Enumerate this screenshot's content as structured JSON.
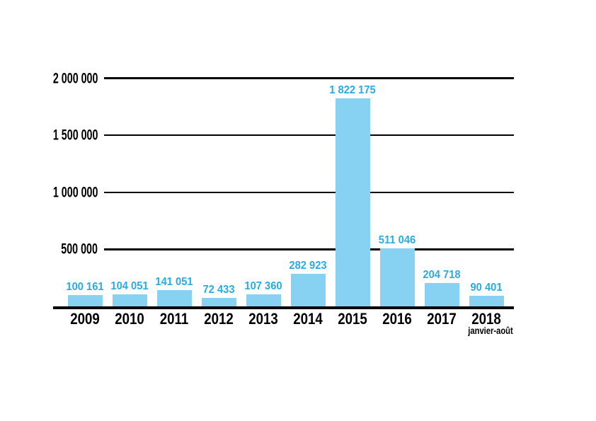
{
  "chart_data": {
    "type": "bar",
    "categories": [
      "2009",
      "2010",
      "2011",
      "2012",
      "2013",
      "2014",
      "2015",
      "2016",
      "2017",
      "2018"
    ],
    "category_sub_labels": [
      "",
      "",
      "",
      "",
      "",
      "",
      "",
      "",
      "",
      "janvier-août"
    ],
    "values": [
      100161,
      104051,
      141051,
      72433,
      107360,
      282923,
      1822175,
      511046,
      204718,
      90401
    ],
    "value_labels": [
      "100 161",
      "104 051",
      "141 051",
      "72 433",
      "107 360",
      "282 923",
      "1 822 175",
      "511 046",
      "204 718",
      "90 401"
    ],
    "y_ticks": [
      {
        "value": 2000000,
        "label": "2 000 000"
      },
      {
        "value": 1500000,
        "label": "1 500 000"
      },
      {
        "value": 1000000,
        "label": "1 000 000"
      },
      {
        "value": 500000,
        "label": "500 000"
      }
    ],
    "ylim": [
      0,
      2000000
    ],
    "xlabel": "",
    "ylabel": "",
    "grid": "horizontal-black-lines-behind-bars",
    "legend": "none",
    "colors": {
      "bar_fill": "#87D2F3",
      "value_label": "#29ABE2",
      "axis_line": "#000000",
      "grid_line": "#000000",
      "axis_text": "#000000",
      "background": "#FFFFFF"
    }
  }
}
